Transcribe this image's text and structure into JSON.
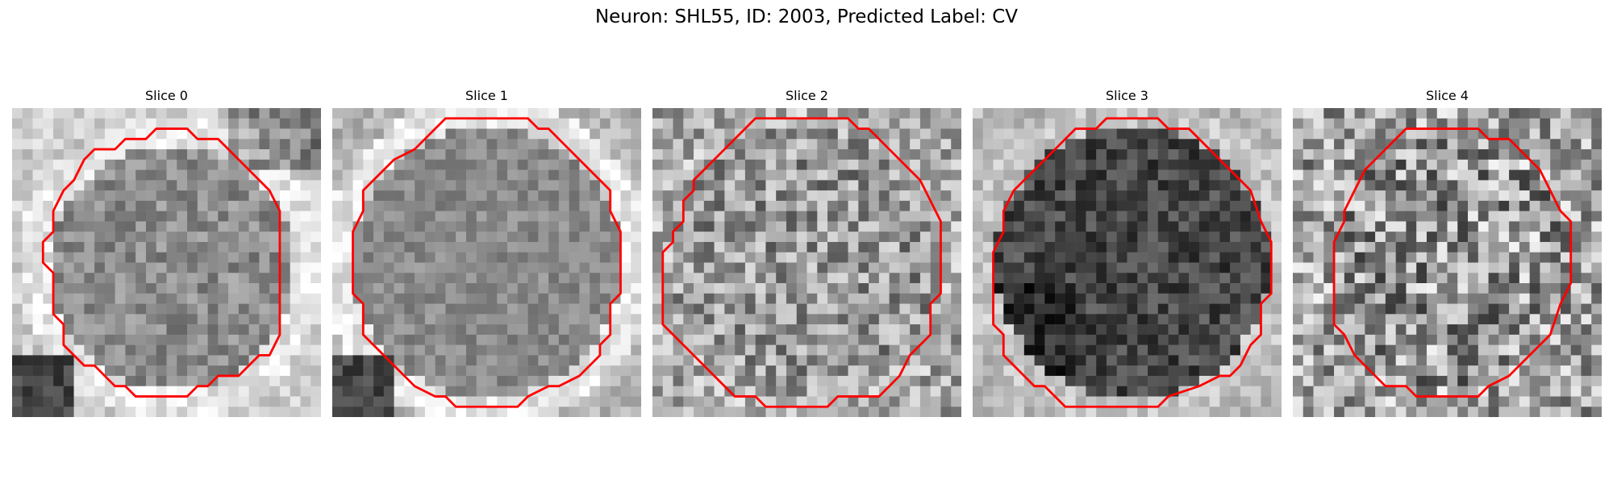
{
  "figure": {
    "title": "Neuron: SHL55, ID: 2003, Predicted Label: CV"
  },
  "slices": [
    {
      "label": "Slice 0",
      "texture": "mid-gray cell on bright background, dark lower-left corner"
    },
    {
      "label": "Slice 1",
      "texture": "smooth mid-gray cell, bright halo, dark lower-left corner"
    },
    {
      "label": "Slice 2",
      "texture": "noisy gray cell"
    },
    {
      "label": "Slice 3",
      "texture": "dark cell on light gray background"
    },
    {
      "label": "Slice 4",
      "texture": "high-noise gray cell"
    }
  ],
  "contour_color": "#ff0000"
}
